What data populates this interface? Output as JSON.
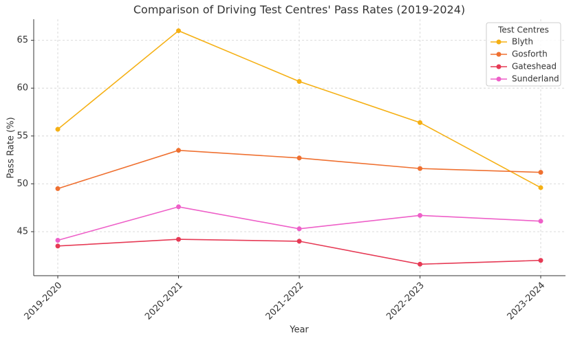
{
  "chart_data": {
    "type": "line",
    "title": "Comparison of Driving Test Centres' Pass Rates (2019-2024)",
    "x_label": "Year",
    "y_label": "Pass Rate (%)",
    "categories": [
      "2019-2020",
      "2020-2021",
      "2021-2022",
      "2022-2023",
      "2023-2024"
    ],
    "series": [
      {
        "name": "Blyth",
        "color": "#f5b014",
        "values": [
          55.7,
          66.0,
          60.7,
          56.4,
          49.6
        ]
      },
      {
        "name": "Gosforth",
        "color": "#ef7030",
        "values": [
          49.5,
          53.5,
          52.7,
          51.6,
          51.2
        ]
      },
      {
        "name": "Gateshead",
        "color": "#e63a55",
        "values": [
          43.5,
          44.2,
          44.0,
          41.6,
          42.0
        ]
      },
      {
        "name": "Sunderland",
        "color": "#ee5fc8",
        "values": [
          44.1,
          47.6,
          45.3,
          46.7,
          46.1
        ]
      }
    ],
    "legend_title": "Test Centres",
    "legend_position": "upper right",
    "ylim": [
      40.4,
      67.2
    ],
    "yticks": [
      45,
      50,
      55,
      60,
      65
    ],
    "grid": true
  }
}
